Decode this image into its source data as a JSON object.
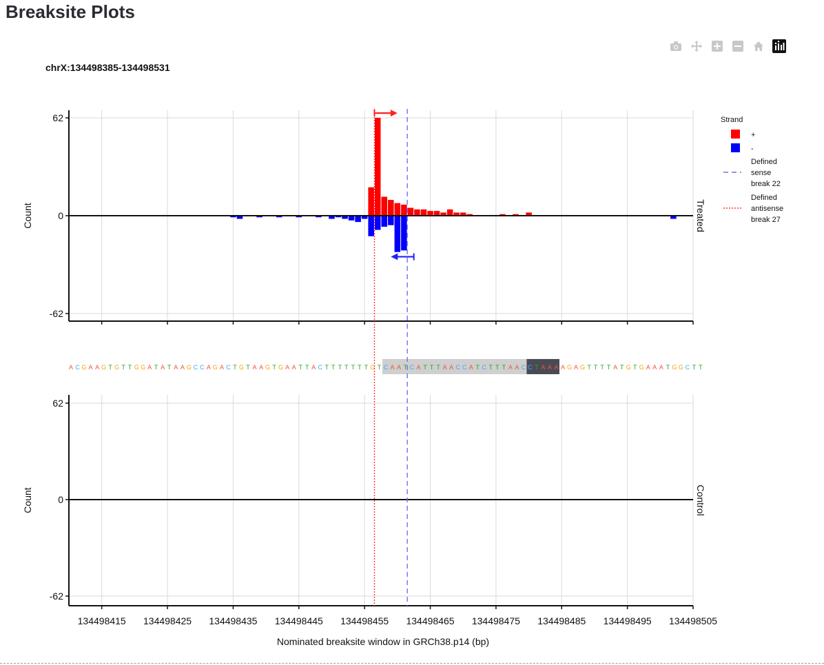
{
  "page": {
    "title": "Breaksite Plots"
  },
  "toolbar": [
    {
      "name": "camera-icon",
      "color": "#c8c8c8"
    },
    {
      "name": "pan-icon",
      "color": "#c8c8c8"
    },
    {
      "name": "zoom-in-icon",
      "color": "#c8c8c8"
    },
    {
      "name": "zoom-out-icon",
      "color": "#c8c8c8"
    },
    {
      "name": "home-icon",
      "color": "#c8c8c8"
    },
    {
      "name": "plotly-logo-icon",
      "color": "#111111"
    }
  ],
  "chart_data": {
    "type": "bar",
    "title": "chrX:134498385-134498531",
    "xlabel": "Nominated breaksite window in GRCh38.p14 (bp)",
    "ylabel": "Count",
    "xlim": [
      134498410,
      134498505
    ],
    "ylim": [
      -62,
      62
    ],
    "ytick_labels": [
      "62",
      "0",
      "-62"
    ],
    "xtick_labels": [
      "134498415",
      "134498425",
      "134498435",
      "134498445",
      "134498455",
      "134498465",
      "134498475",
      "134498485",
      "134498495",
      "134498505"
    ],
    "grid": true,
    "legend": {
      "title": "Strand",
      "placement": "right",
      "entries": [
        {
          "label": "+",
          "kind": "box",
          "color": "#ff0000"
        },
        {
          "label": "-",
          "kind": "box",
          "color": "#0000ff"
        },
        {
          "label": "Defined sense break 22",
          "lines": [
            "Defined",
            "sense",
            "break 22"
          ],
          "kind": "dash",
          "color": "#6e6ef0"
        },
        {
          "label": "Defined antisense break 27",
          "lines": [
            "Defined",
            "antisense",
            "break 27"
          ],
          "kind": "dot",
          "color": "#ff3333"
        }
      ]
    },
    "panels": [
      {
        "name": "Treated",
        "series": [
          {
            "name": "+",
            "color": "#ff0000",
            "x": [
              134498456,
              134498457,
              134498458,
              134498459,
              134498460,
              134498461,
              134498462,
              134498463,
              134498464,
              134498465,
              134498466,
              134498467,
              134498468,
              134498469,
              134498470,
              134498471,
              134498476,
              134498478,
              134498480
            ],
            "values": [
              18,
              62,
              12,
              10,
              8,
              7,
              5,
              4,
              4,
              3,
              3,
              2,
              4,
              2,
              2,
              1,
              1,
              1,
              2
            ]
          },
          {
            "name": "-",
            "color": "#0000ff",
            "x": [
              134498435,
              134498436,
              134498439,
              134498442,
              134498445,
              134498448,
              134498450,
              134498451,
              134498452,
              134498453,
              134498454,
              134498455,
              134498456,
              134498457,
              134498458,
              134498459,
              134498460,
              134498461,
              134498502
            ],
            "values": [
              -1,
              -2,
              -1,
              -1,
              -1,
              -1,
              -2,
              -1,
              -2,
              -3,
              -4,
              -2,
              -13,
              -9,
              -7,
              -6,
              -23,
              -22,
              -2
            ]
          }
        ]
      },
      {
        "name": "Control",
        "series": []
      }
    ],
    "vlines": [
      {
        "name": "Defined antisense break 27",
        "x": 134498456.5,
        "color": "#ff3333",
        "style": "dot"
      },
      {
        "name": "Defined sense break 22",
        "x": 134498461.5,
        "color": "#6e6ef0",
        "style": "dash"
      }
    ],
    "arrows": [
      {
        "strand": "+",
        "x_from": 134498456.5,
        "x_to": 134498460,
        "y": 65,
        "color": "#ff2020"
      },
      {
        "strand": "-",
        "x_from": 134498462.5,
        "x_to": 134498459,
        "y": -26,
        "color": "#2020ff"
      }
    ],
    "sequence": {
      "text": "ACGAAGTGTTGGATATAAGCCAGACTGTAAGTGAATTACTTTTTTTGTCAATCATTTAACCATCTTTAACCTAAAAGAGTTTTATGTGAAATGGCTT",
      "colors": {
        "A": "#ef553b",
        "C": "#3fa7ff",
        "G": "#f4a300",
        "T": "#2ca02c"
      },
      "highlight": {
        "start": 48,
        "end": 69,
        "color": "#cfcfcf"
      },
      "pam": {
        "start": 70,
        "end": 74,
        "color": "#4a4a55"
      }
    }
  }
}
